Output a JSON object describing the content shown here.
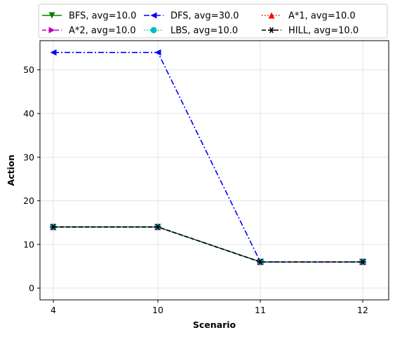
{
  "chart_data": {
    "type": "line",
    "title": "",
    "xlabel": "Scenario",
    "ylabel": "Action",
    "categories": [
      "4",
      "10",
      "11",
      "12"
    ],
    "ylim": [
      -2.7,
      56.7
    ],
    "yticks": [
      0,
      10,
      20,
      30,
      40,
      50
    ],
    "grid": true,
    "legend_position": "top",
    "series": [
      {
        "name": "BFS, avg=10.0",
        "values": [
          14,
          14,
          6,
          6
        ],
        "color": "#008000",
        "linestyle": "solid",
        "marker": "triangle-down"
      },
      {
        "name": "DFS, avg=30.0",
        "values": [
          54,
          54,
          6,
          6
        ],
        "color": "#0000ff",
        "linestyle": "dashdot",
        "marker": "triangle-left"
      },
      {
        "name": "A*1, avg=10.0",
        "values": [
          14,
          14,
          6,
          6
        ],
        "color": "#ff0000",
        "linestyle": "dotted",
        "marker": "triangle-up"
      },
      {
        "name": "A*2, avg=10.0",
        "values": [
          14,
          14,
          6,
          6
        ],
        "color": "#bf00bf",
        "linestyle": "dashed",
        "marker": "triangle-right"
      },
      {
        "name": "LBS, avg=10.0",
        "values": [
          14,
          14,
          6,
          6
        ],
        "color": "#00bfbf",
        "linestyle": "dotted",
        "marker": "circle"
      },
      {
        "name": "HILL, avg=10.0",
        "values": [
          14,
          14,
          6,
          6
        ],
        "color": "#000000",
        "linestyle": "dashed",
        "marker": "star"
      }
    ]
  }
}
